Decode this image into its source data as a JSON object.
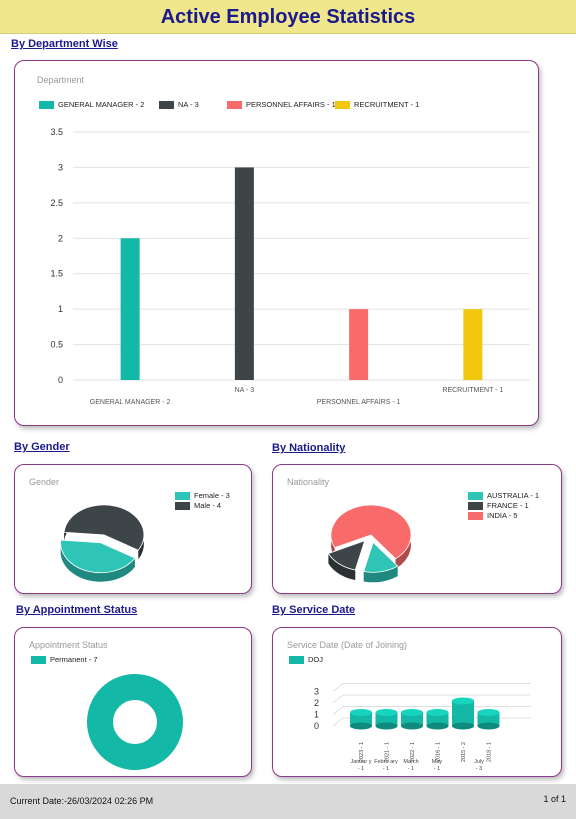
{
  "header": {
    "title": "Active Employee Statistics"
  },
  "sections": {
    "department": "By Department Wise",
    "gender": "By Gender",
    "nationality": "By Nationality",
    "appointment": "By Appointment Status",
    "service_date": "By Service Date"
  },
  "colors": {
    "teal": "#14b8a6",
    "dark": "#3d4548",
    "salmon": "#f96b6b",
    "gold": "#f2c80f"
  },
  "chart_data": [
    {
      "id": "department",
      "type": "bar",
      "title": "Department",
      "categories": [
        "GENERAL MANAGER - 2",
        "NA - 3",
        "PERSONNEL AFFAIRS - 1",
        "RECRUITMENT - 1"
      ],
      "values": [
        2,
        3,
        1,
        1
      ],
      "colors": [
        "#14b8a6",
        "#3d4548",
        "#f96b6b",
        "#f2c80f"
      ],
      "legend": [
        "GENERAL MANAGER - 2",
        "NA - 3",
        "PERSONNEL AFFAIRS - 1",
        "RECRUITMENT - 1"
      ],
      "legend_position": "top",
      "ylim": [
        0,
        3.5
      ],
      "yticks": [
        "0",
        "0.5",
        "1",
        "1.5",
        "2",
        "2.5",
        "3",
        "3.5"
      ],
      "grid": true
    },
    {
      "id": "gender",
      "type": "pie",
      "title": "Gender",
      "labels": [
        "Female - 3",
        "Male - 4"
      ],
      "values": [
        3,
        4
      ],
      "colors": [
        "#2ec4b6",
        "#3d4548"
      ],
      "legend_position": "right"
    },
    {
      "id": "nationality",
      "type": "pie",
      "title": "Nationality",
      "labels": [
        "AUSTRALIA - 1",
        "FRANCE - 1",
        "INDIA - 5"
      ],
      "values": [
        1,
        1,
        5
      ],
      "colors": [
        "#2ec4b6",
        "#3d4548",
        "#f96b6b"
      ],
      "legend_position": "right"
    },
    {
      "id": "appointment",
      "type": "pie",
      "title": "Appointment Status",
      "labels": [
        "Permanent - 7"
      ],
      "values": [
        7
      ],
      "colors": [
        "#14b8a6"
      ],
      "legend_position": "top"
    },
    {
      "id": "service_date",
      "type": "bar",
      "title": "Service Date (Date of Joining)",
      "legend": [
        "DOJ"
      ],
      "colors": [
        "#14b8a6"
      ],
      "categories": [
        "2023 - 1",
        "2021 - 1",
        "2022 - 1",
        "2016 - 1",
        "2015 - 2",
        "2018 - 1"
      ],
      "subcategories": [
        "Januar y - 1",
        "Febru ary - 1",
        "March - 1",
        "May - 1",
        "July - 3",
        ""
      ],
      "values": [
        1,
        1,
        1,
        1,
        2,
        1
      ],
      "ylim": [
        0,
        3
      ],
      "yticks": [
        "0",
        "1",
        "2",
        "3"
      ],
      "legend_position": "top"
    }
  ],
  "footer": {
    "date": "Current Date:-26/03/2024 02:26 PM",
    "page": "1 of 1"
  }
}
